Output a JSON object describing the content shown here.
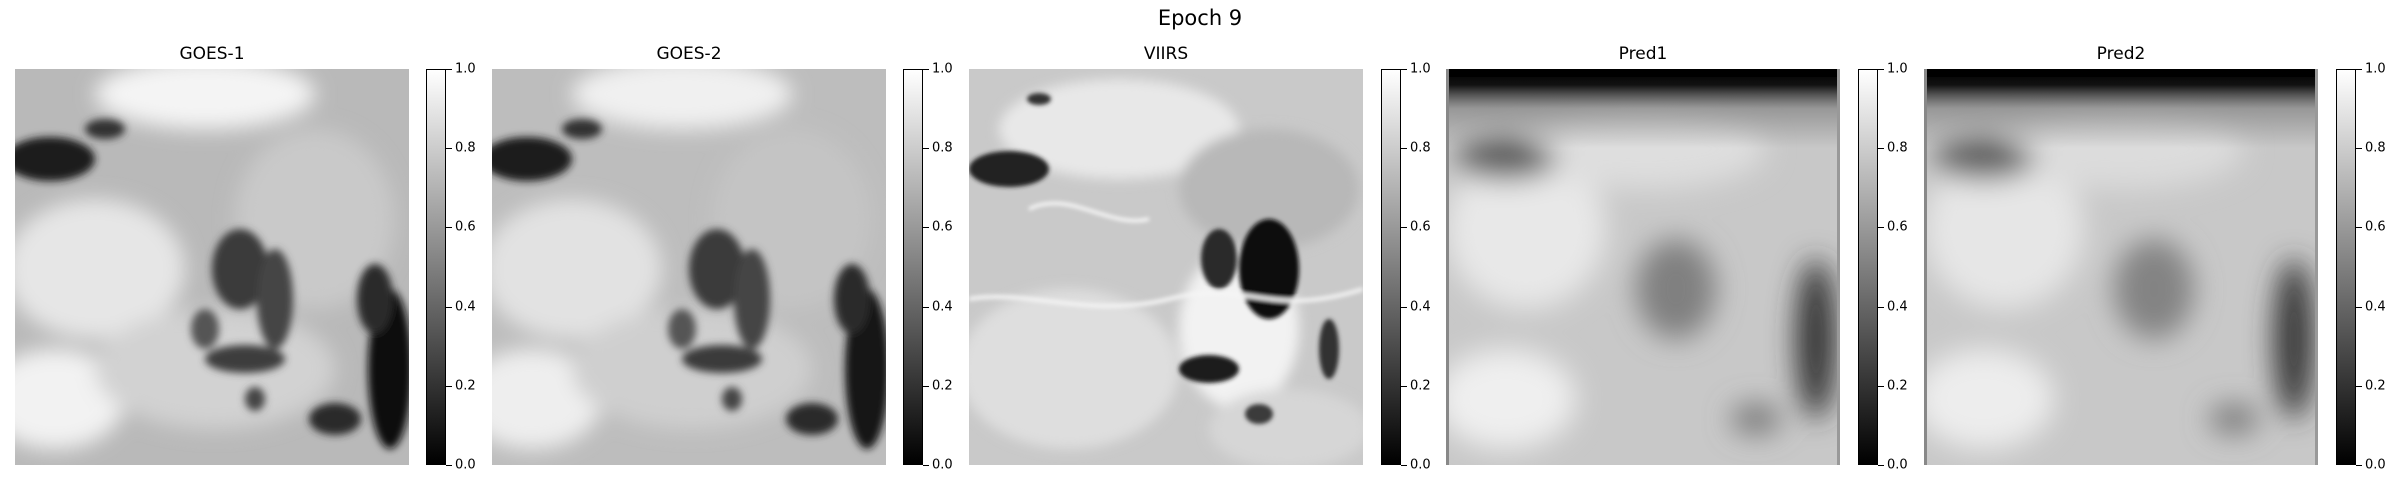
{
  "figure": {
    "title": "Epoch 9"
  },
  "panels": [
    {
      "title": "GOES-1"
    },
    {
      "title": "GOES-2"
    },
    {
      "title": "VIIRS"
    },
    {
      "title": "Pred1"
    },
    {
      "title": "Pred2"
    }
  ],
  "colorbar": {
    "colormap": "gray",
    "range": [
      0.0,
      1.0
    ],
    "ticks": [
      "0.0",
      "0.2",
      "0.4",
      "0.6",
      "0.8",
      "1.0"
    ]
  },
  "colors": {
    "background": "#ffffff",
    "min": "#000000",
    "max": "#ffffff"
  }
}
